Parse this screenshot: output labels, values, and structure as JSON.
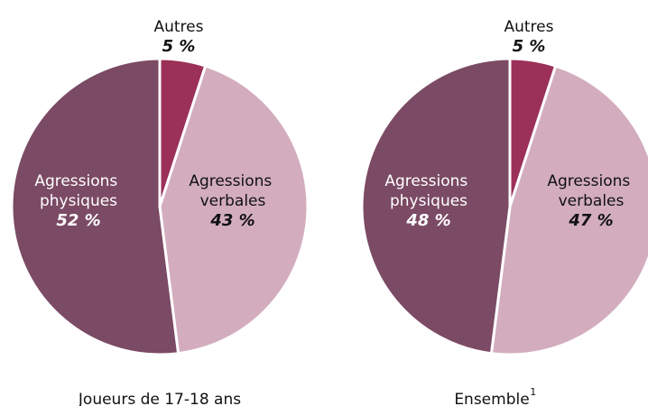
{
  "chart_data": [
    {
      "type": "pie",
      "title": "Joueurs de 17-18 ans",
      "categories": [
        "Autres",
        "Agressions verbales",
        "Agressions physiques"
      ],
      "values": [
        5,
        43,
        52
      ],
      "value_labels": [
        "5 %",
        "43 %",
        "52 %"
      ],
      "colors": [
        "#9b3158",
        "#d3adbe",
        "#7b4a64"
      ]
    },
    {
      "type": "pie",
      "title": "Ensemble",
      "title_note": "1",
      "categories": [
        "Autres",
        "Agressions verbales",
        "Agressions physiques"
      ],
      "values": [
        5,
        47,
        48
      ],
      "value_labels": [
        "5 %",
        "47 %",
        "48 %"
      ],
      "colors": [
        "#9b3158",
        "#d3adbe",
        "#7b4a64"
      ]
    }
  ]
}
